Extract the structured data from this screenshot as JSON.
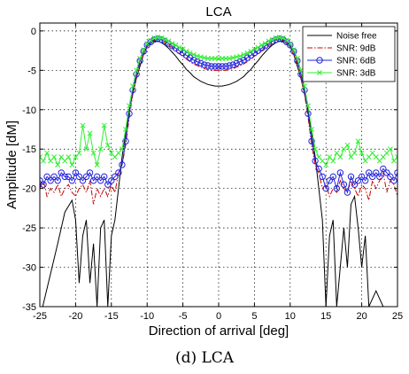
{
  "chart_data": {
    "type": "line",
    "title": "LCA",
    "xlabel": "Direction of arrival [deg]",
    "ylabel": "Amplitude [dM]",
    "xlim": [
      -25,
      25
    ],
    "ylim": [
      -35,
      1
    ],
    "xticks": [
      -25,
      -20,
      -15,
      -10,
      -5,
      0,
      5,
      10,
      15,
      20,
      25
    ],
    "yticks": [
      0,
      -5,
      -10,
      -15,
      -20,
      -25,
      -30,
      -35
    ],
    "grid": true,
    "legend_position": "top-right",
    "series": [
      {
        "name": "Noise free",
        "color": "#000000",
        "style": "solid",
        "marker": "none",
        "x": [
          -24.6,
          -22.5,
          -21.5,
          -20.5,
          -20.0,
          -19.5,
          -19.0,
          -18.5,
          -18.0,
          -17.5,
          -17.0,
          -16.5,
          -16.0,
          -15.5,
          -15.0,
          -14.5,
          -14.0,
          -13.5,
          -13.0,
          -12.5,
          -12.0,
          -11.5,
          -11.0,
          -10.5,
          -10.0,
          -9.5,
          -9.0,
          -8.5,
          -8.0,
          -7.5,
          -7.0,
          -6.5,
          -6.0,
          -5.5,
          -5.0,
          -4.5,
          -4.0,
          -3.5,
          -3.0,
          -2.5,
          -2.0,
          -1.5,
          -1.0,
          -0.5,
          0.0,
          0.5,
          1.0,
          1.5,
          2.0,
          2.5,
          3.0,
          3.5,
          4.0,
          4.5,
          5.0,
          5.5,
          6.0,
          6.5,
          7.0,
          7.5,
          8.0,
          8.5,
          9.0,
          9.5,
          10.0,
          10.5,
          11.0,
          11.5,
          12.0,
          12.5,
          13.0,
          13.5,
          14.0,
          14.5,
          15.0,
          15.5,
          16.0,
          16.5,
          17.0,
          17.5,
          18.0,
          18.5,
          19.0,
          19.5,
          20.0,
          20.5,
          21.0,
          22.0,
          23.0,
          24.6
        ],
        "y": [
          -35,
          -27,
          -23,
          -21.5,
          -24,
          -32,
          -26,
          -24,
          -32,
          -27,
          -35,
          -25,
          -24,
          -35,
          -26,
          -24,
          -20,
          -16,
          -13,
          -10,
          -8,
          -6,
          -4.5,
          -3,
          -2,
          -1.6,
          -1.3,
          -1.3,
          -1.5,
          -1.8,
          -2.2,
          -2.7,
          -3.2,
          -3.8,
          -4.3,
          -4.9,
          -5.3,
          -5.8,
          -6.1,
          -6.4,
          -6.6,
          -6.8,
          -6.9,
          -7.0,
          -7.0,
          -7.0,
          -6.9,
          -6.8,
          -6.6,
          -6.4,
          -6.1,
          -5.8,
          -5.3,
          -4.9,
          -4.3,
          -3.8,
          -3.2,
          -2.7,
          -2.2,
          -1.8,
          -1.5,
          -1.3,
          -1.3,
          -1.6,
          -2,
          -3,
          -4.5,
          -6,
          -8,
          -10,
          -13,
          -16,
          -20,
          -24,
          -35,
          -26,
          -24,
          -35,
          -30,
          -25,
          -30,
          -22,
          -21,
          -25,
          -30,
          -26,
          -35,
          -33,
          -35,
          -35
        ]
      },
      {
        "name": "SNR: 9dB",
        "color": "#cc0000",
        "style": "dashdot",
        "marker": "none",
        "x": [
          -25.0,
          -24.5,
          -24.0,
          -23.5,
          -23.0,
          -22.5,
          -22.0,
          -21.5,
          -21.0,
          -20.5,
          -20.0,
          -19.5,
          -19.0,
          -18.5,
          -18.0,
          -17.5,
          -17.0,
          -16.5,
          -16.0,
          -15.5,
          -15.0,
          -14.5,
          -14.0,
          -13.5,
          -13.0,
          -12.5,
          -12.0,
          -11.5,
          -11.0,
          -10.5,
          -10.0,
          -9.5,
          -9.0,
          -8.5,
          -8.0,
          -7.5,
          -7.0,
          -6.5,
          -6.0,
          -5.5,
          -5.0,
          -4.5,
          -4.0,
          -3.5,
          -3.0,
          -2.5,
          -2.0,
          -1.5,
          -1.0,
          -0.5,
          0.0,
          0.5,
          1.0,
          1.5,
          2.0,
          2.5,
          3.0,
          3.5,
          4.0,
          4.5,
          5.0,
          5.5,
          6.0,
          6.5,
          7.0,
          7.5,
          8.0,
          8.5,
          9.0,
          9.5,
          10.0,
          10.5,
          11.0,
          11.5,
          12.0,
          12.5,
          13.0,
          13.5,
          14.0,
          14.5,
          15.0,
          15.5,
          16.0,
          16.5,
          17.0,
          17.5,
          18.0,
          18.5,
          19.0,
          19.5,
          20.0,
          20.5,
          21.0,
          21.5,
          22.0,
          22.5,
          23.0,
          23.5,
          24.0,
          24.5,
          25.0
        ],
        "y": [
          -20,
          -19,
          -21,
          -20,
          -20.5,
          -19.5,
          -21,
          -20,
          -19.5,
          -20.5,
          -21,
          -20,
          -19.5,
          -20.5,
          -19,
          -22,
          -20,
          -21,
          -20,
          -21,
          -19.5,
          -20.5,
          -18,
          -17,
          -14.5,
          -11,
          -8,
          -6,
          -4.2,
          -3,
          -2,
          -1.6,
          -1.2,
          -1.0,
          -1.2,
          -1.5,
          -1.8,
          -2.1,
          -2.5,
          -2.9,
          -3.2,
          -3.6,
          -3.9,
          -4.2,
          -4.4,
          -4.6,
          -4.8,
          -4.9,
          -5.0,
          -5.0,
          -5.0,
          -5.0,
          -5.0,
          -4.9,
          -4.8,
          -4.6,
          -4.4,
          -4.2,
          -3.9,
          -3.6,
          -3.2,
          -2.9,
          -2.5,
          -2.1,
          -1.8,
          -1.5,
          -1.2,
          -1.0,
          -1.2,
          -1.6,
          -2,
          -3,
          -4.2,
          -6,
          -8,
          -11,
          -14.5,
          -17,
          -18,
          -20,
          -19.5,
          -21,
          -20,
          -20.5,
          -19,
          -20,
          -20.5,
          -19,
          -20,
          -21,
          -19.5,
          -20,
          -21.5,
          -19,
          -20,
          -19,
          -18,
          -20.5,
          -19,
          -19.5,
          -21
        ]
      },
      {
        "name": "SNR: 6dB",
        "color": "#2222dd",
        "style": "solid",
        "marker": "circle",
        "x": [
          -25.0,
          -24.5,
          -24.0,
          -23.5,
          -23.0,
          -22.5,
          -22.0,
          -21.5,
          -21.0,
          -20.5,
          -20.0,
          -19.5,
          -19.0,
          -18.5,
          -18.0,
          -17.5,
          -17.0,
          -16.5,
          -16.0,
          -15.5,
          -15.0,
          -14.5,
          -14.0,
          -13.5,
          -13.0,
          -12.5,
          -12.0,
          -11.5,
          -11.0,
          -10.5,
          -10.0,
          -9.5,
          -9.0,
          -8.5,
          -8.0,
          -7.5,
          -7.0,
          -6.5,
          -6.0,
          -5.5,
          -5.0,
          -4.5,
          -4.0,
          -3.5,
          -3.0,
          -2.5,
          -2.0,
          -1.5,
          -1.0,
          -0.5,
          0.0,
          0.5,
          1.0,
          1.5,
          2.0,
          2.5,
          3.0,
          3.5,
          4.0,
          4.5,
          5.0,
          5.5,
          6.0,
          6.5,
          7.0,
          7.5,
          8.0,
          8.5,
          9.0,
          9.5,
          10.0,
          10.5,
          11.0,
          11.5,
          12.0,
          12.5,
          13.0,
          13.5,
          14.0,
          14.5,
          15.0,
          15.5,
          16.0,
          16.5,
          17.0,
          17.5,
          18.0,
          18.5,
          19.0,
          19.5,
          20.0,
          20.5,
          21.0,
          21.5,
          22.0,
          22.5,
          23.0,
          23.5,
          24.0,
          24.5,
          25.0
        ],
        "y": [
          -19,
          -19.5,
          -18.5,
          -19,
          -18.5,
          -19,
          -18,
          -18.5,
          -18.5,
          -19,
          -18,
          -18.5,
          -19,
          -18.5,
          -18,
          -19,
          -18.5,
          -19,
          -18.5,
          -19.5,
          -19,
          -18.5,
          -18,
          -17,
          -14,
          -10.5,
          -7.5,
          -5.5,
          -3.8,
          -2.6,
          -1.8,
          -1.4,
          -1.1,
          -1.0,
          -1.1,
          -1.3,
          -1.6,
          -1.9,
          -2.2,
          -2.5,
          -2.8,
          -3.1,
          -3.4,
          -3.7,
          -3.9,
          -4.1,
          -4.3,
          -4.4,
          -4.5,
          -4.5,
          -4.5,
          -4.5,
          -4.5,
          -4.4,
          -4.3,
          -4.1,
          -3.9,
          -3.7,
          -3.4,
          -3.1,
          -2.8,
          -2.5,
          -2.2,
          -1.9,
          -1.6,
          -1.3,
          -1.1,
          -1.0,
          -1.1,
          -1.4,
          -1.8,
          -2.6,
          -3.8,
          -5.5,
          -7.5,
          -10.5,
          -14,
          -16.5,
          -17.5,
          -18.5,
          -20,
          -19,
          -18.5,
          -20,
          -18,
          -19.5,
          -20.5,
          -18.5,
          -19.5,
          -19,
          -18.5,
          -19,
          -18,
          -18.5,
          -18,
          -18.5,
          -17.5,
          -18,
          -18.5,
          -19,
          -18
        ]
      },
      {
        "name": "SNR: 3dB",
        "color": "#33ee33",
        "style": "solid",
        "marker": "x",
        "x": [
          -25.0,
          -24.5,
          -24.0,
          -23.5,
          -23.0,
          -22.5,
          -22.0,
          -21.5,
          -21.0,
          -20.5,
          -20.0,
          -19.5,
          -19.0,
          -18.5,
          -18.0,
          -17.5,
          -17.0,
          -16.5,
          -16.0,
          -15.5,
          -15.0,
          -14.5,
          -14.0,
          -13.5,
          -13.0,
          -12.5,
          -12.0,
          -11.5,
          -11.0,
          -10.5,
          -10.0,
          -9.5,
          -9.0,
          -8.5,
          -8.0,
          -7.5,
          -7.0,
          -6.5,
          -6.0,
          -5.5,
          -5.0,
          -4.5,
          -4.0,
          -3.5,
          -3.0,
          -2.5,
          -2.0,
          -1.5,
          -1.0,
          -0.5,
          0.0,
          0.5,
          1.0,
          1.5,
          2.0,
          2.5,
          3.0,
          3.5,
          4.0,
          4.5,
          5.0,
          5.5,
          6.0,
          6.5,
          7.0,
          7.5,
          8.0,
          8.5,
          9.0,
          9.5,
          10.0,
          10.5,
          11.0,
          11.5,
          12.0,
          12.5,
          13.0,
          13.5,
          14.0,
          14.5,
          15.0,
          15.5,
          16.0,
          16.5,
          17.0,
          17.5,
          18.0,
          18.5,
          19.0,
          19.5,
          20.0,
          20.5,
          21.0,
          21.5,
          22.0,
          22.5,
          23.0,
          23.5,
          24.0,
          24.5,
          25.0
        ],
        "y": [
          -16,
          -16.5,
          -15.5,
          -16.5,
          -16,
          -17,
          -16,
          -16.5,
          -16,
          -17,
          -16,
          -15.5,
          -12,
          -15,
          -13,
          -15.5,
          -17,
          -15,
          -12,
          -14.5,
          -15.5,
          -16,
          -15.5,
          -15,
          -12.5,
          -9.5,
          -7,
          -5,
          -3.5,
          -2.4,
          -1.6,
          -1.2,
          -0.9,
          -0.8,
          -0.9,
          -1.1,
          -1.3,
          -1.6,
          -1.8,
          -2.1,
          -2.3,
          -2.6,
          -2.8,
          -3.0,
          -3.2,
          -3.3,
          -3.4,
          -3.5,
          -3.5,
          -3.5,
          -3.5,
          -3.5,
          -3.5,
          -3.5,
          -3.4,
          -3.3,
          -3.2,
          -3.0,
          -2.8,
          -2.6,
          -2.3,
          -2.1,
          -1.8,
          -1.6,
          -1.3,
          -1.1,
          -0.9,
          -0.8,
          -0.9,
          -1.2,
          -1.6,
          -2.4,
          -3.5,
          -5,
          -7,
          -9.5,
          -12.5,
          -15,
          -16,
          -16.5,
          -17,
          -16,
          -16.5,
          -15.5,
          -16,
          -15,
          -14.5,
          -16,
          -15.5,
          -14,
          -15.5,
          -16.5,
          -16,
          -15.5,
          -16,
          -16.5,
          -16,
          -15.5,
          -15,
          -16.5,
          -16
        ]
      }
    ]
  },
  "caption": "(d) LCA"
}
